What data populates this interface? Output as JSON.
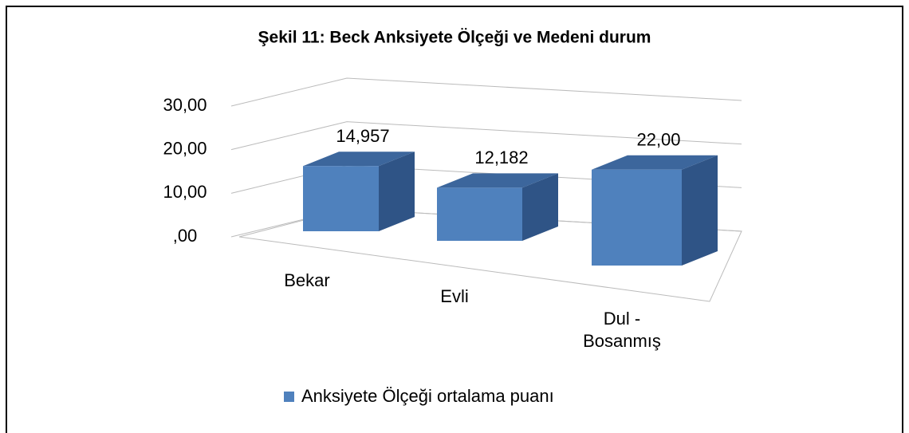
{
  "chart_data": {
    "type": "bar3d",
    "title": "Şekil  11: Beck Anksiyete Ölçeği ve Medeni durum",
    "categories": [
      "Bekar",
      "Evli",
      "Dul - Bosanmış"
    ],
    "series": [
      {
        "name": "Anksiyete Ölçeği ortalama puanı",
        "color": "#4f81bd",
        "values": [
          14.957,
          12.182,
          22.0
        ],
        "value_labels": [
          "14,957",
          "12,182",
          "22,00"
        ]
      }
    ],
    "ylim": [
      0,
      30
    ],
    "yticks": [
      {
        "value": 0,
        "label": ",00"
      },
      {
        "value": 10,
        "label": "10,00"
      },
      {
        "value": 20,
        "label": "20,00"
      },
      {
        "value": 30,
        "label": "30,00"
      }
    ],
    "grid": true,
    "legend": "bottom"
  }
}
